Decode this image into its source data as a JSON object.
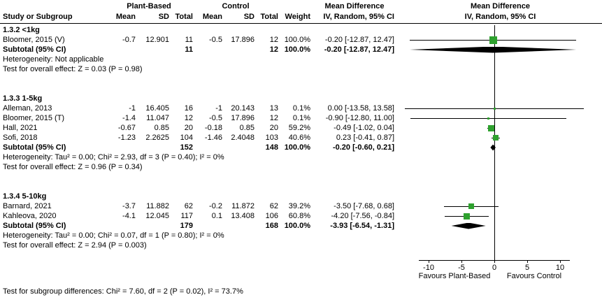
{
  "header": {
    "group1_label": "Plant-Based",
    "group2_label": "Control",
    "md_label": "Mean Difference",
    "cols": {
      "study": "Study or Subgroup",
      "mean": "Mean",
      "sd": "SD",
      "total": "Total",
      "weight": "Weight",
      "ci": "IV, Random, 95% CI"
    }
  },
  "axis": {
    "favours_left": "Favours Plant-Based",
    "favours_right": "Favours Control"
  },
  "footer": "Test for subgroup differences: Chi² = 7.60, df = 2 (P = 0.02), I² = 73.7%",
  "colors": {
    "square": "#2ea12e",
    "diamond": "#000000",
    "line": "#000000"
  },
  "chart_data": {
    "type": "forest",
    "effect_measure": "Mean Difference, IV, Random, 95% CI",
    "x_axis": {
      "ticks": [
        -10,
        -5,
        0,
        5,
        10
      ],
      "favours_left": "Favours Plant-Based",
      "favours_right": "Favours Control"
    },
    "subgroups": [
      {
        "title": "1.3.2 <1kg",
        "studies": [
          {
            "name": "Bloomer, 2015 (V)",
            "mean1": "-0.7",
            "sd1": "12.901",
            "n1": "11",
            "mean2": "-0.5",
            "sd2": "17.896",
            "n2": "12",
            "weight": "100.0%",
            "weight_pct": 100.0,
            "ci_text": "-0.20 [-12.87, 12.47]",
            "md": -0.2,
            "ci_lo": -12.87,
            "ci_hi": 12.47
          }
        ],
        "subtotal": {
          "label": "Subtotal (95% CI)",
          "n1": "11",
          "n2": "12",
          "weight": "100.0%",
          "ci_text": "-0.20 [-12.87, 12.47]",
          "md": -0.2,
          "ci_lo": -12.87,
          "ci_hi": 12.47
        },
        "heterogeneity": "Heterogeneity: Not applicable",
        "overall_effect": "Test for overall effect: Z = 0.03 (P = 0.98)"
      },
      {
        "title": "1.3.3 1-5kg",
        "studies": [
          {
            "name": "Alleman, 2013",
            "mean1": "-1",
            "sd1": "16.405",
            "n1": "16",
            "mean2": "-1",
            "sd2": "20.143",
            "n2": "13",
            "weight": "0.1%",
            "weight_pct": 0.1,
            "ci_text": "0.00 [-13.58, 13.58]",
            "md": 0.0,
            "ci_lo": -13.58,
            "ci_hi": 13.58
          },
          {
            "name": "Bloomer, 2015 (T)",
            "mean1": "-1.4",
            "sd1": "11.047",
            "n1": "12",
            "mean2": "-0.5",
            "sd2": "17.896",
            "n2": "12",
            "weight": "0.1%",
            "weight_pct": 0.1,
            "ci_text": "-0.90 [-12.80, 11.00]",
            "md": -0.9,
            "ci_lo": -12.8,
            "ci_hi": 11.0
          },
          {
            "name": "Hall, 2021",
            "mean1": "-0.67",
            "sd1": "0.85",
            "n1": "20",
            "mean2": "-0.18",
            "sd2": "0.85",
            "n2": "20",
            "weight": "59.2%",
            "weight_pct": 59.2,
            "ci_text": "-0.49 [-1.02, 0.04]",
            "md": -0.49,
            "ci_lo": -1.02,
            "ci_hi": 0.04
          },
          {
            "name": "Sofi, 2018",
            "mean1": "-1.23",
            "sd1": "2.2625",
            "n1": "104",
            "mean2": "-1.46",
            "sd2": "2.4048",
            "n2": "103",
            "weight": "40.6%",
            "weight_pct": 40.6,
            "ci_text": "0.23 [-0.41, 0.87]",
            "md": 0.23,
            "ci_lo": -0.41,
            "ci_hi": 0.87
          }
        ],
        "subtotal": {
          "label": "Subtotal (95% CI)",
          "n1": "152",
          "n2": "148",
          "weight": "100.0%",
          "ci_text": "-0.20 [-0.60, 0.21]",
          "md": -0.2,
          "ci_lo": -0.6,
          "ci_hi": 0.21
        },
        "heterogeneity": "Heterogeneity: Tau² = 0.00; Chi² = 2.93, df = 3 (P = 0.40); I² = 0%",
        "overall_effect": "Test for overall effect: Z = 0.96 (P = 0.34)"
      },
      {
        "title": "1.3.4 5-10kg",
        "studies": [
          {
            "name": "Barnard, 2021",
            "mean1": "-3.7",
            "sd1": "11.882",
            "n1": "62",
            "mean2": "-0.2",
            "sd2": "11.872",
            "n2": "62",
            "weight": "39.2%",
            "weight_pct": 39.2,
            "ci_text": "-3.50 [-7.68, 0.68]",
            "md": -3.5,
            "ci_lo": -7.68,
            "ci_hi": 0.68
          },
          {
            "name": "Kahleova, 2020",
            "mean1": "-4.1",
            "sd1": "12.045",
            "n1": "117",
            "mean2": "0.1",
            "sd2": "13.408",
            "n2": "106",
            "weight": "60.8%",
            "weight_pct": 60.8,
            "ci_text": "-4.20 [-7.56, -0.84]",
            "md": -4.2,
            "ci_lo": -7.56,
            "ci_hi": -0.84
          }
        ],
        "subtotal": {
          "label": "Subtotal (95% CI)",
          "n1": "179",
          "n2": "168",
          "weight": "100.0%",
          "ci_text": "-3.93 [-6.54, -1.31]",
          "md": -3.93,
          "ci_lo": -6.54,
          "ci_hi": -1.31
        },
        "heterogeneity": "Heterogeneity: Tau² = 0.00; Chi² = 0.07, df = 1 (P = 0.80); I² = 0%",
        "overall_effect": "Test for overall effect: Z = 2.94 (P = 0.003)"
      }
    ]
  }
}
